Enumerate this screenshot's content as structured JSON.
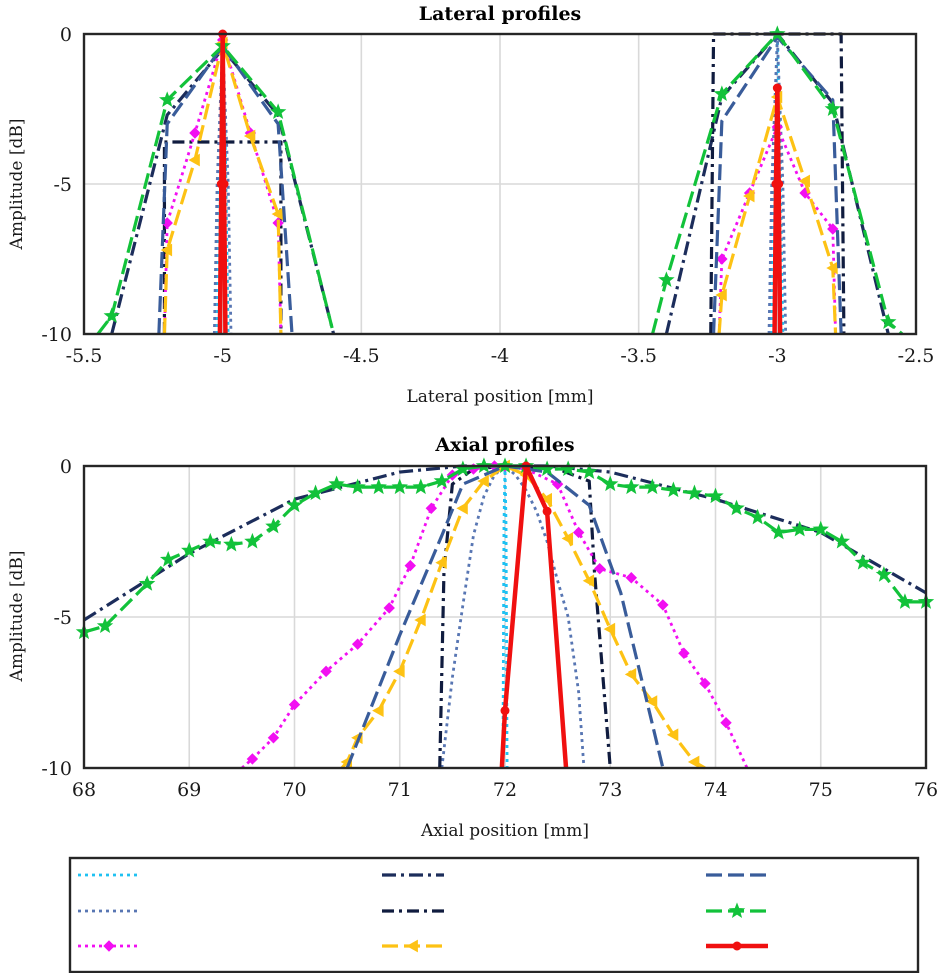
{
  "chart_data": [
    {
      "type": "line",
      "title": "Lateral profiles",
      "xlabel": "Lateral position [mm]",
      "ylabel": "Amplitude [dB]",
      "xlim": [
        -5.5,
        -2.5
      ],
      "ylim": [
        -10,
        0
      ],
      "xticks": [
        -5.5,
        -5,
        -4.5,
        -4,
        -3.5,
        -3,
        -2.5
      ],
      "xtick_labels": [
        "-5.5",
        "-5",
        "-4.5",
        "-4",
        "-3.5",
        "-3",
        "-2.5"
      ],
      "yticks": [
        0,
        -5,
        -10
      ],
      "ytick_labels": [
        "0",
        "-5",
        "-10"
      ],
      "grid": true,
      "series": [
        {
          "style": "s1",
          "x": [
            -5.02,
            -5.01,
            -5.0,
            -4.99,
            -4.98,
            null,
            -3.02,
            -3.01,
            -3.0,
            -2.99,
            -2.98
          ],
          "y": [
            -10,
            -4,
            0,
            -4,
            -10,
            null,
            -10,
            -4,
            0,
            -4,
            -10
          ]
        },
        {
          "style": "s2",
          "x": [
            -5.4,
            -5.2,
            -5.0,
            -4.8,
            -4.6,
            null,
            -3.4,
            -3.2,
            -3.0,
            -2.8,
            -2.6
          ],
          "y": [
            -10,
            -2.7,
            -0.5,
            -2.7,
            -10,
            null,
            -10,
            -2.1,
            0,
            -2.3,
            -10
          ]
        },
        {
          "style": "s3",
          "x": [
            -5.03,
            -5.02,
            -5.0,
            -4.98,
            -4.97,
            null,
            -3.03,
            -3.02,
            -3.0,
            -2.98,
            -2.97
          ],
          "y": [
            -10,
            -5,
            -0.3,
            -5,
            -10,
            null,
            -10,
            -5,
            -0.1,
            -5,
            -10
          ]
        },
        {
          "style": "s4",
          "x": [
            -5.21,
            -5.21,
            -4.79,
            -4.79,
            null,
            -3.24,
            -3.23,
            -2.77,
            -2.76
          ],
          "y": [
            -10,
            -3.6,
            -3.6,
            -10,
            null,
            -10,
            0,
            0,
            -10
          ]
        },
        {
          "style": "s5",
          "x": [
            -5.21,
            -5.2,
            -5.1,
            -5.0,
            -4.9,
            -4.8,
            -4.79,
            null,
            -3.21,
            -3.2,
            -3.1,
            -3.0,
            -2.9,
            -2.8,
            -2.79
          ],
          "y": [
            -10,
            -6.3,
            -3.3,
            -0.2,
            -3.3,
            -6.3,
            -10,
            null,
            -10,
            -7.5,
            -5.3,
            -3.1,
            -5.3,
            -6.5,
            -10
          ]
        },
        {
          "style": "s6",
          "x": [
            -5.21,
            -5.2,
            -5.1,
            -5.0,
            -4.9,
            -4.8,
            -4.79,
            null,
            -3.21,
            -3.2,
            -3.1,
            -3.0,
            -2.9,
            -2.8,
            -2.79
          ],
          "y": [
            -10,
            -7.2,
            -4.2,
            -0.3,
            -3.4,
            -6.0,
            -10,
            null,
            -10,
            -8.7,
            -5.4,
            -2.1,
            -4.9,
            -7.8,
            -10
          ]
        },
        {
          "style": "s7",
          "x": [
            -5.23,
            -5.2,
            -5.0,
            -4.8,
            -4.75,
            null,
            -3.23,
            -3.2,
            -3.0,
            -2.8,
            -2.77
          ],
          "y": [
            -10,
            -3.0,
            -0.4,
            -3.0,
            -10,
            null,
            -10,
            -2.9,
            -0.1,
            -2.2,
            -10
          ]
        },
        {
          "style": "s8",
          "x": [
            -5.45,
            -5.4,
            -5.2,
            -5.0,
            -4.8,
            -4.6,
            null,
            -3.45,
            -3.4,
            -3.2,
            -3.0,
            -2.8,
            -2.6,
            -2.55
          ],
          "y": [
            -10,
            -9.4,
            -2.2,
            -0.4,
            -2.6,
            -10,
            null,
            -10,
            -8.2,
            -2.0,
            0,
            -2.5,
            -9.6,
            -10
          ]
        },
        {
          "style": "s9",
          "x": [
            -5.01,
            -5.005,
            -5.0,
            -4.995,
            -4.99,
            null,
            -3.01,
            -3.005,
            -3.0,
            -2.995,
            -2.99
          ],
          "y": [
            -10,
            -5,
            0,
            -5,
            -10,
            null,
            -10,
            -5,
            -1.8,
            -5,
            -10
          ]
        }
      ]
    },
    {
      "type": "line",
      "title": "Axial profiles",
      "xlabel": "Axial position [mm]",
      "ylabel": "Amplitude [dB]",
      "xlim": [
        68,
        76
      ],
      "ylim": [
        -10,
        0
      ],
      "xticks": [
        68,
        69,
        70,
        71,
        72,
        73,
        74,
        75,
        76
      ],
      "xtick_labels": [
        "68",
        "69",
        "70",
        "71",
        "72",
        "73",
        "74",
        "75",
        "76"
      ],
      "yticks": [
        0,
        -5,
        -10
      ],
      "ytick_labels": [
        "0",
        "-5",
        "-10"
      ],
      "grid": true,
      "series": [
        {
          "style": "s1",
          "x": [
            71.98,
            71.99,
            72.0,
            72.01,
            72.02
          ],
          "y": [
            -10,
            -2,
            0,
            -2,
            -10
          ]
        },
        {
          "style": "s2",
          "x": [
            68.0,
            69.0,
            70.0,
            71.0,
            71.6,
            72.0,
            72.4,
            73.0,
            74.0,
            75.0,
            76.0
          ],
          "y": [
            -5.1,
            -2.9,
            -1.1,
            -0.2,
            0,
            0,
            0,
            -0.2,
            -1.1,
            -2.2,
            -4.2
          ]
        },
        {
          "style": "s3",
          "x": [
            71.4,
            71.5,
            71.6,
            71.7,
            71.8,
            71.9,
            72.0,
            72.1,
            72.2,
            72.3,
            72.4,
            72.5,
            72.6,
            72.7,
            72.75
          ],
          "y": [
            -10,
            -7.0,
            -4.6,
            -2.3,
            -1.0,
            -0.3,
            0,
            -0.3,
            -0.8,
            -1.5,
            -2.5,
            -3.8,
            -5.0,
            -7.5,
            -10
          ]
        },
        {
          "style": "s4",
          "x": [
            71.38,
            71.42,
            71.5,
            71.7,
            72.0,
            72.5,
            72.8,
            72.85,
            73.0
          ],
          "y": [
            -10,
            -3.5,
            -0.6,
            -0.1,
            0,
            -0.1,
            -0.5,
            -3.5,
            -10
          ]
        },
        {
          "style": "s5",
          "x": [
            69.5,
            69.6,
            69.8,
            70.0,
            70.3,
            70.6,
            70.9,
            71.1,
            71.3,
            71.5,
            71.7,
            71.9,
            72.0,
            72.2,
            72.5,
            72.7,
            72.9,
            73.2,
            73.5,
            73.7,
            73.9,
            74.1,
            74.3
          ],
          "y": [
            -10,
            -9.7,
            -9.0,
            -7.9,
            -6.8,
            -5.9,
            -4.7,
            -3.3,
            -1.4,
            -0.3,
            -0.1,
            0,
            0,
            -0.1,
            -0.6,
            -2.2,
            -3.4,
            -3.7,
            -4.6,
            -6.2,
            -7.2,
            -8.5,
            -10
          ]
        },
        {
          "style": "s6",
          "x": [
            70.45,
            70.5,
            70.6,
            70.8,
            71.0,
            71.2,
            71.4,
            71.6,
            71.8,
            72.0,
            72.2,
            72.4,
            72.6,
            72.8,
            73.0,
            73.2,
            73.4,
            73.6,
            73.8,
            73.9
          ],
          "y": [
            -10,
            -9.8,
            -9.0,
            -8.1,
            -6.8,
            -5.1,
            -3.2,
            -1.4,
            -0.5,
            0,
            -0.3,
            -1.1,
            -2.4,
            -3.8,
            -5.4,
            -6.9,
            -7.8,
            -8.9,
            -9.8,
            -10
          ]
        },
        {
          "style": "s7",
          "x": [
            70.5,
            71.0,
            71.4,
            71.6,
            72.0,
            72.4,
            72.8,
            73.1,
            73.5
          ],
          "y": [
            -10,
            -5.6,
            -2.3,
            -0.6,
            0,
            -0.2,
            -1.3,
            -4.2,
            -10
          ]
        },
        {
          "style": "s8",
          "x": [
            68.0,
            68.2,
            68.6,
            68.8,
            69.0,
            69.2,
            69.4,
            69.6,
            69.8,
            70.0,
            70.2,
            70.4,
            70.6,
            70.8,
            71.0,
            71.2,
            71.4,
            71.6,
            71.8,
            72.0,
            72.2,
            72.4,
            72.6,
            72.8,
            73.0,
            73.2,
            73.4,
            73.6,
            73.8,
            74.0,
            74.2,
            74.4,
            74.6,
            74.8,
            75.0,
            75.2,
            75.4,
            75.6,
            75.8,
            76.0
          ],
          "y": [
            -5.5,
            -5.3,
            -3.9,
            -3.1,
            -2.8,
            -2.5,
            -2.6,
            -2.5,
            -2.0,
            -1.3,
            -0.9,
            -0.6,
            -0.7,
            -0.7,
            -0.7,
            -0.7,
            -0.5,
            -0.1,
            0,
            0,
            0,
            -0.1,
            -0.1,
            -0.2,
            -0.6,
            -0.7,
            -0.7,
            -0.8,
            -0.9,
            -1.0,
            -1.4,
            -1.7,
            -2.2,
            -2.1,
            -2.1,
            -2.5,
            -3.2,
            -3.6,
            -4.5,
            -4.5
          ]
        },
        {
          "style": "s9",
          "x": [
            71.97,
            72.0,
            72.2,
            72.4,
            72.58
          ],
          "y": [
            -10,
            -8.1,
            0,
            -1.5,
            -10
          ]
        }
      ]
    }
  ],
  "styles": {
    "s1": {
      "color": "#1fc1f2",
      "dash": "3 4",
      "width": 2.8,
      "marker": "none"
    },
    "s2": {
      "color": "#1c2d5b",
      "dash": "14 5 3 5",
      "width": 3.2,
      "marker": "none"
    },
    "s3": {
      "color": "#5876b3",
      "dash": "3 4",
      "width": 2.8,
      "marker": "none"
    },
    "s4": {
      "color": "#101c3f",
      "dash": "12 5 3 5",
      "width": 3.2,
      "marker": "none"
    },
    "s5": {
      "color": "#f20ff2",
      "dash": "3 4",
      "width": 2.8,
      "marker": "diamond"
    },
    "s6": {
      "color": "#fdc214",
      "dash": "16 6",
      "width": 3.2,
      "marker": "triangle"
    },
    "s7": {
      "color": "#395c9a",
      "dash": "16 6",
      "width": 3.2,
      "marker": "none"
    },
    "s8": {
      "color": "#12c23a",
      "dash": "16 6",
      "width": 3.2,
      "marker": "star"
    },
    "s9": {
      "color": "#f01010",
      "dash": "",
      "width": 4.5,
      "marker": "circle"
    }
  },
  "legend": {
    "placement": "bottom",
    "entries": [
      {
        "style": "s1",
        "label": ""
      },
      {
        "style": "s2",
        "label": ""
      },
      {
        "style": "s7",
        "label": ""
      },
      {
        "style": "s3",
        "label": ""
      },
      {
        "style": "s4",
        "label": ""
      },
      {
        "style": "s8",
        "label": ""
      },
      {
        "style": "s5",
        "label": ""
      },
      {
        "style": "s6",
        "label": ""
      },
      {
        "style": "s9",
        "label": ""
      }
    ]
  }
}
